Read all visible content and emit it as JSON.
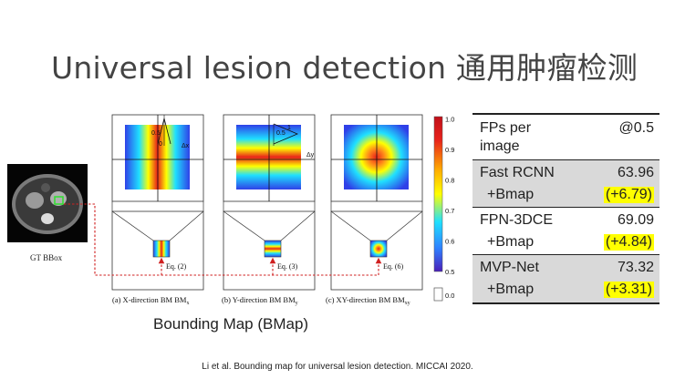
{
  "title": "Universal lesion detection 通用肿瘤检测",
  "figure": {
    "gt_label": "GT BBox",
    "panel_a_caption": "(a)  X-direction BM BM",
    "panel_a_sub": "x",
    "panel_b_caption": "(b) Y-direction BM BM",
    "panel_b_sub": "y",
    "panel_c_caption": "(c) XY-direction BM BM",
    "panel_c_sub": "xy",
    "eq_a": "Eq. (2)",
    "eq_b": "Eq. (3)",
    "eq_c": "Eq. (6)",
    "delta_x": "Δx",
    "delta_y": "Δy",
    "val_half": "0.5",
    "val_zero": "0",
    "val_one": "1",
    "colorbar_ticks": [
      "1.0",
      "0.9",
      "0.8",
      "0.7",
      "0.6",
      "0.5"
    ],
    "colorbar_zero": "0.0",
    "colors": {
      "red": "#e8221b",
      "yellow": "#ffff00",
      "cyan": "#1fe0ff",
      "blue": "#2f40e8"
    }
  },
  "bmap_caption": "Bounding Map (BMap)",
  "table": {
    "header_left": "FPs per image",
    "header_right": "@0.5",
    "rows": [
      {
        "method": "Fast RCNN",
        "score": "63.96",
        "variant": "+Bmap",
        "gain": "(+6.79)",
        "shaded": true
      },
      {
        "method": "FPN-3DCE",
        "score": "69.09",
        "variant": "+Bmap",
        "gain": "(+4.84)",
        "shaded": false
      },
      {
        "method": "MVP-Net",
        "score": "73.32",
        "variant": "+Bmap",
        "gain": "(+3.31)",
        "shaded": true
      }
    ]
  },
  "footer": "Li et al. Bounding map for universal lesion detection. MICCAI 2020."
}
